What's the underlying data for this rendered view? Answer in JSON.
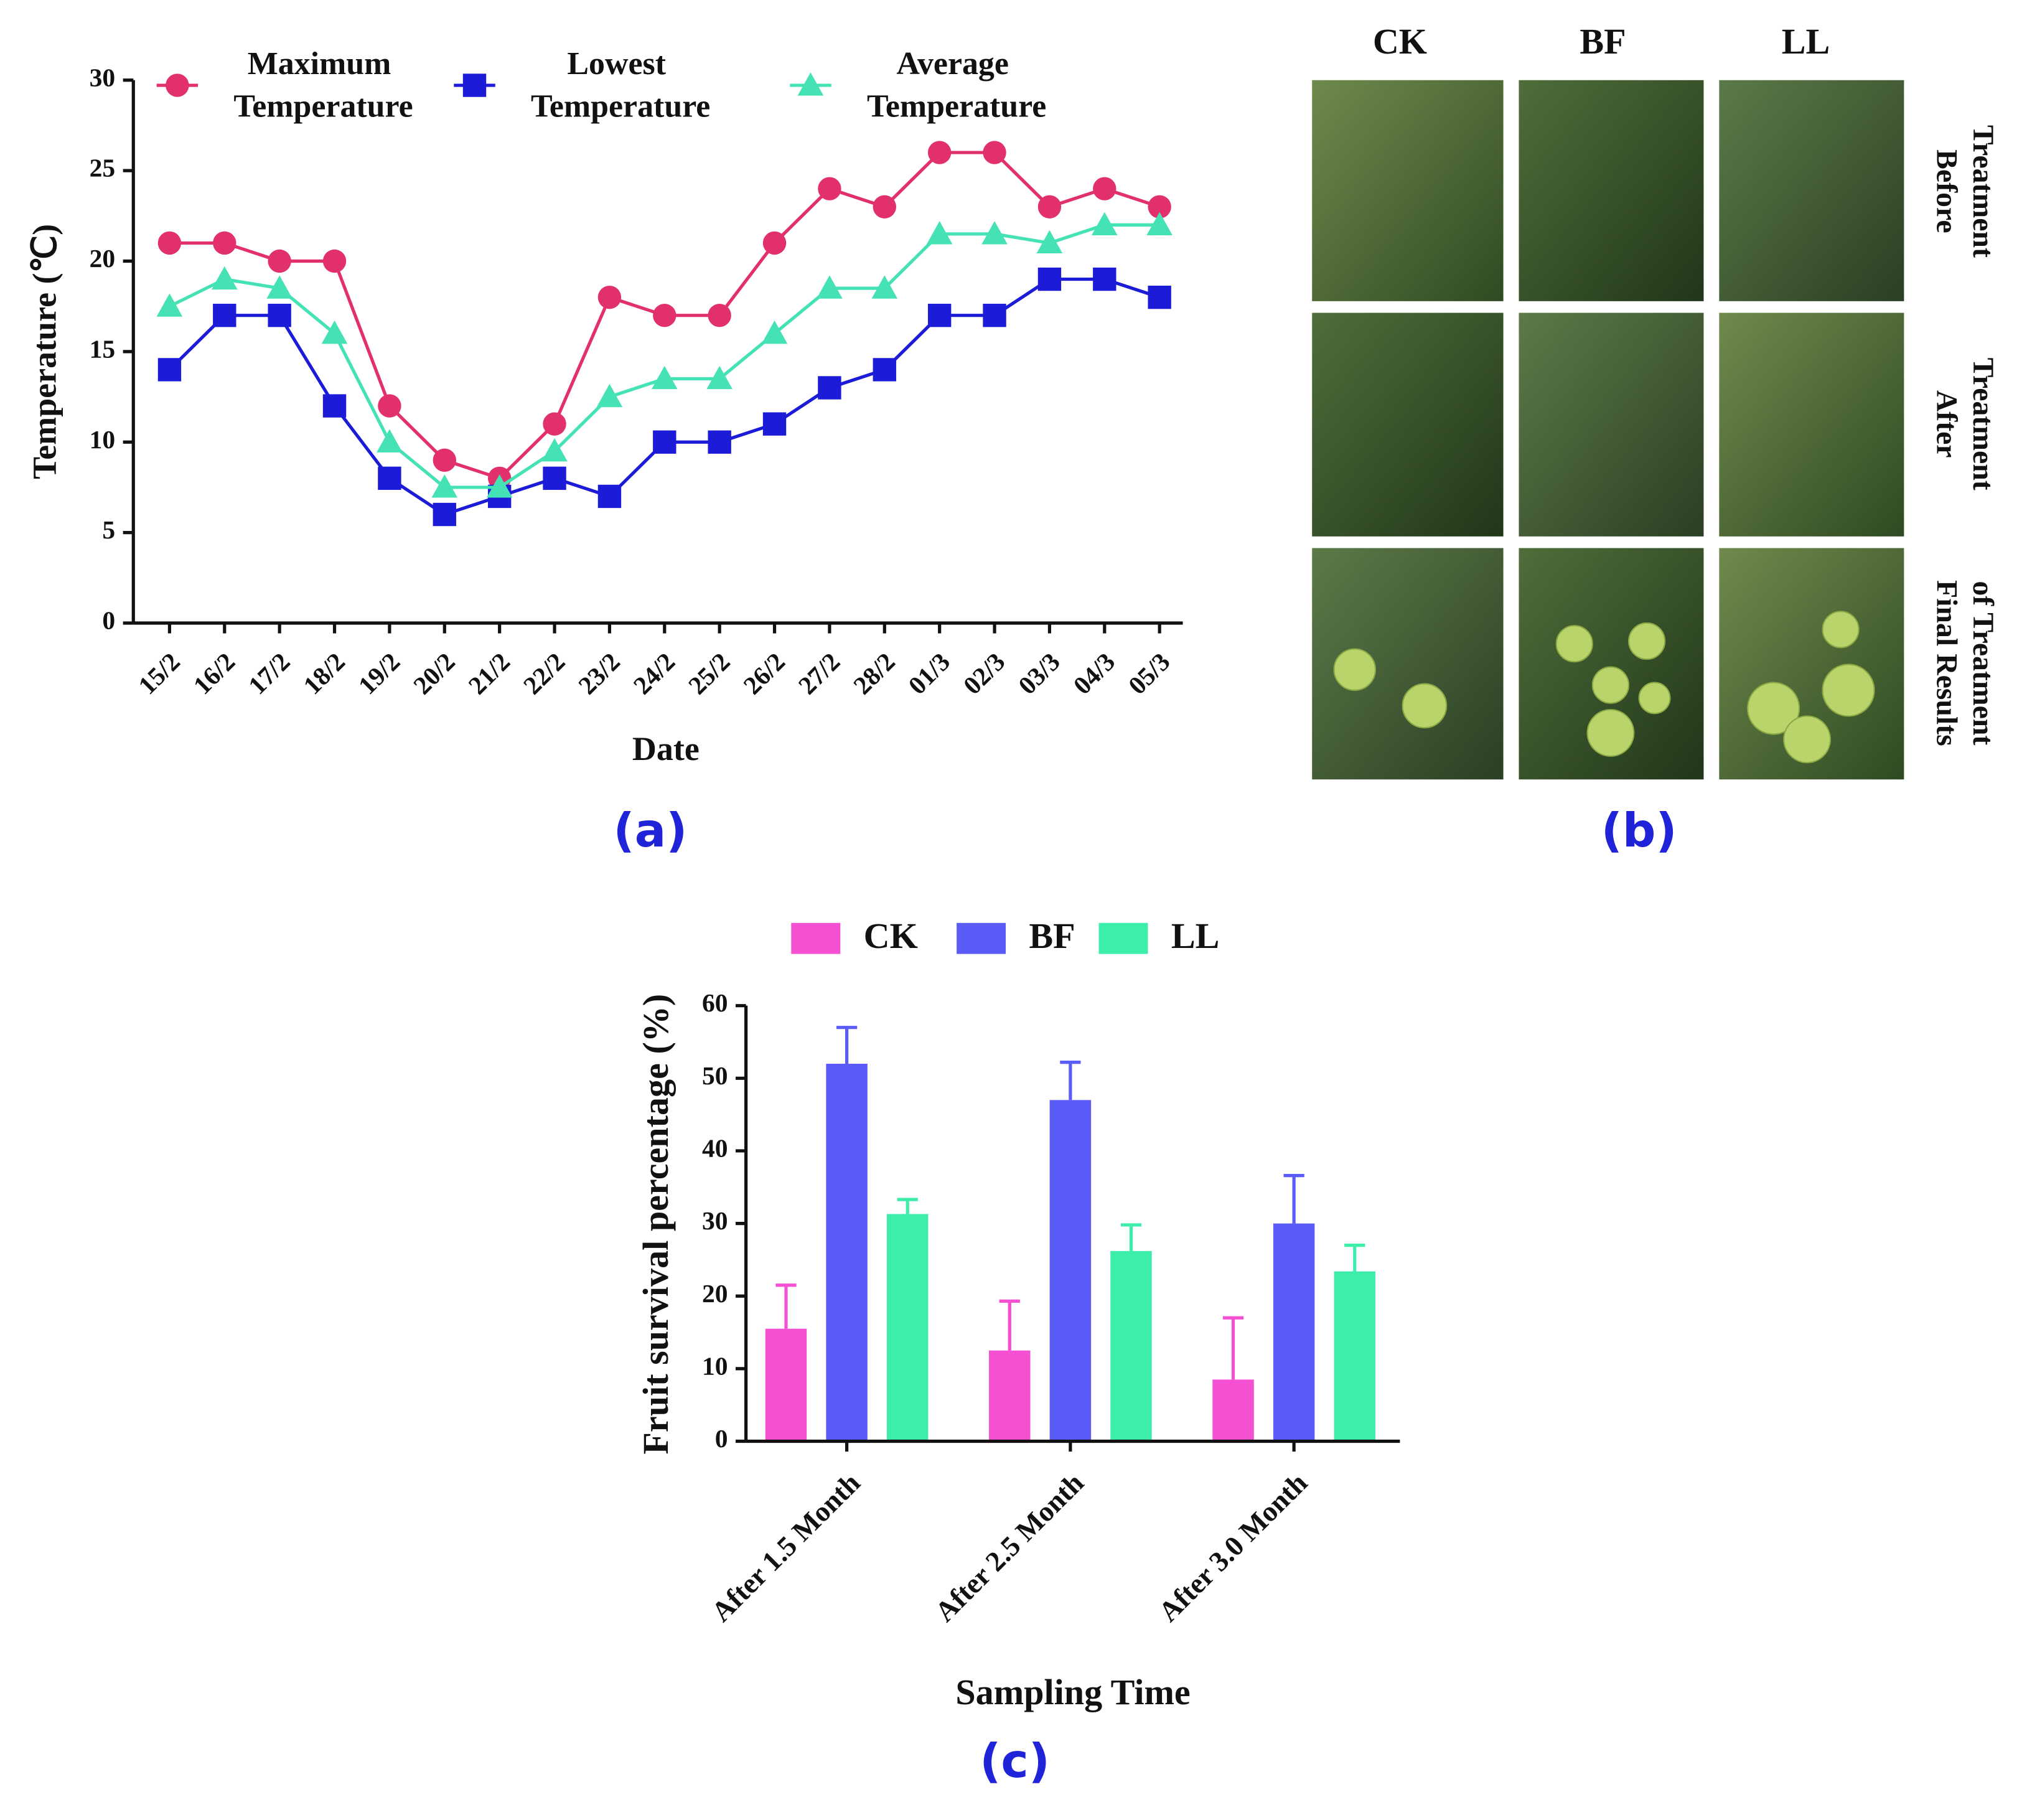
{
  "chart_data": [
    {
      "type": "line",
      "caption": "(a)",
      "xlabel": "Date",
      "ylabel": "Temperature (℃)",
      "categories": [
        "15/2",
        "16/2",
        "17/2",
        "18/2",
        "19/2",
        "20/2",
        "21/2",
        "22/2",
        "23/2",
        "24/2",
        "25/2",
        "26/2",
        "27/2",
        "28/2",
        "01/3",
        "02/3",
        "03/3",
        "04/3",
        "05/3"
      ],
      "series": [
        {
          "name": "Maximum Temperature",
          "color": "#e2306c",
          "marker": "circle",
          "values": [
            21,
            21,
            20,
            20,
            12,
            9,
            8,
            11,
            18,
            17,
            17,
            21,
            24,
            23,
            26,
            26,
            23,
            24,
            23
          ]
        },
        {
          "name": "Lowest Temperature",
          "color": "#1c1cd8",
          "marker": "square",
          "values": [
            14,
            17,
            17,
            12,
            8,
            6,
            7,
            8,
            7,
            10,
            10,
            11,
            13,
            14,
            17,
            17,
            19,
            19,
            18
          ]
        },
        {
          "name": "Average Temperature",
          "color": "#44e2b4",
          "marker": "triangle",
          "values": [
            17.5,
            19,
            18.5,
            16,
            10,
            7.5,
            7.5,
            9.5,
            12.5,
            13.5,
            13.5,
            16,
            18.5,
            18.5,
            21.5,
            21.5,
            21,
            22,
            22
          ]
        }
      ],
      "ylim": [
        0,
        30
      ],
      "yticks": [
        0,
        5,
        10,
        15,
        20,
        25,
        30
      ]
    },
    {
      "type": "bar",
      "caption": "(c)",
      "xlabel": "Sampling Time",
      "ylabel": "Fruit survival percentage (%)",
      "categories": [
        "After 1.5 Month",
        "After 2.5 Month",
        "After 3.0 Month"
      ],
      "series": [
        {
          "name": "CK",
          "color": "#f54fd2",
          "values": [
            15.5,
            12.5,
            8.5
          ],
          "errors": [
            6,
            6.8,
            8.5
          ]
        },
        {
          "name": "BF",
          "color": "#5b5bf7",
          "values": [
            52,
            47,
            30
          ],
          "errors": [
            5,
            5.2,
            6.6
          ]
        },
        {
          "name": "LL",
          "color": "#3deeaa",
          "values": [
            31.3,
            26.2,
            23.4
          ],
          "errors": [
            2,
            3.6,
            3.6
          ]
        }
      ],
      "ylim": [
        0,
        60
      ],
      "yticks": [
        0,
        10,
        20,
        30,
        40,
        50,
        60
      ]
    }
  ],
  "photo_panel": {
    "caption": "(b)",
    "columns": [
      "CK",
      "BF",
      "LL"
    ],
    "rows": [
      [
        "Before",
        "Treatment"
      ],
      [
        "After",
        "Treatment"
      ],
      [
        "Final Results",
        "of Treatment"
      ]
    ]
  }
}
